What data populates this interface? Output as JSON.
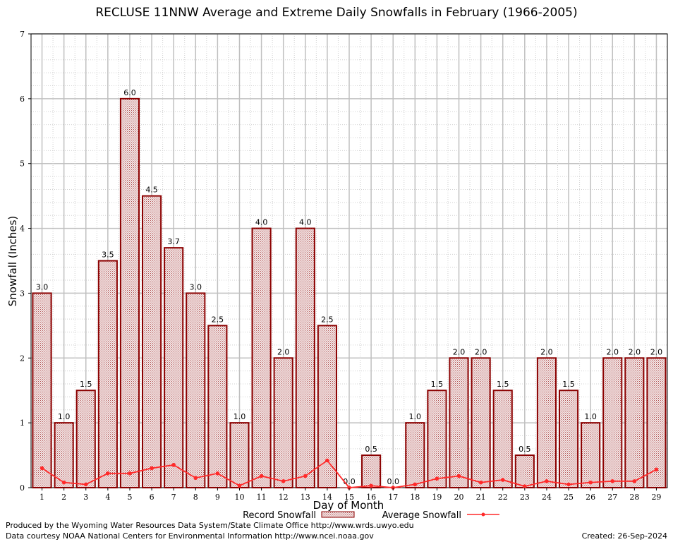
{
  "footer": {
    "producer": "Produced by the Wyoming Water Resources Data System/State Climate Office http://www.wrds.uwyo.edu",
    "courtesy": "Data courtesy NOAA National Centers for Environmental Information http://www.ncei.noaa.gov",
    "created": "Created: 26-Sep-2024"
  },
  "colors": {
    "bar_fill": "#e8d4d4",
    "bar_stroke": "#8b0000",
    "line": "#ff2a2a",
    "grid_major": "#c0c0c0",
    "grid_minor": "#d0d0d0"
  },
  "chart_data": {
    "type": "bar",
    "title": "RECLUSE 11NNW Average and Extreme Daily Snowfalls in February (1966-2005)",
    "xlabel": "Day of Month",
    "ylabel": "Snowfall (Inches)",
    "ylim": [
      0,
      7
    ],
    "yticks": [
      "0",
      "1",
      "2",
      "3",
      "4",
      "5",
      "6",
      "7"
    ],
    "categories": [
      "1",
      "2",
      "3",
      "4",
      "5",
      "6",
      "7",
      "8",
      "9",
      "10",
      "11",
      "12",
      "13",
      "14",
      "15",
      "16",
      "17",
      "18",
      "19",
      "20",
      "21",
      "22",
      "23",
      "24",
      "25",
      "26",
      "27",
      "28",
      "29"
    ],
    "grid": true,
    "legend_position": "bottom",
    "series": [
      {
        "name": "Record Snowfall",
        "kind": "bar",
        "values": [
          3.0,
          1.0,
          1.5,
          3.5,
          6.0,
          4.5,
          3.7,
          3.0,
          2.5,
          1.0,
          4.0,
          2.0,
          4.0,
          2.5,
          0.0,
          0.5,
          0.0,
          1.0,
          1.5,
          2.0,
          2.0,
          1.5,
          0.5,
          2.0,
          1.5,
          1.0,
          2.0,
          2.0,
          2.0
        ],
        "labels": [
          "3.0",
          "1.0",
          "1.5",
          "3.5",
          "6.0",
          "4.5",
          "3.7",
          "3.0",
          "2.5",
          "1.0",
          "4.0",
          "2.0",
          "4.0",
          "2.5",
          "0.0",
          "0.5",
          "0.0",
          "1.0",
          "1.5",
          "2.0",
          "2.0",
          "1.5",
          "0.5",
          "2.0",
          "1.5",
          "1.0",
          "2.0",
          "2.0",
          "2.0"
        ]
      },
      {
        "name": "Average Snowfall",
        "kind": "line",
        "values": [
          0.3,
          0.08,
          0.05,
          0.22,
          0.22,
          0.3,
          0.35,
          0.15,
          0.22,
          0.03,
          0.18,
          0.1,
          0.18,
          0.42,
          0.0,
          0.03,
          0.0,
          0.05,
          0.14,
          0.18,
          0.08,
          0.12,
          0.02,
          0.1,
          0.05,
          0.08,
          0.1,
          0.1,
          0.28
        ]
      }
    ]
  }
}
